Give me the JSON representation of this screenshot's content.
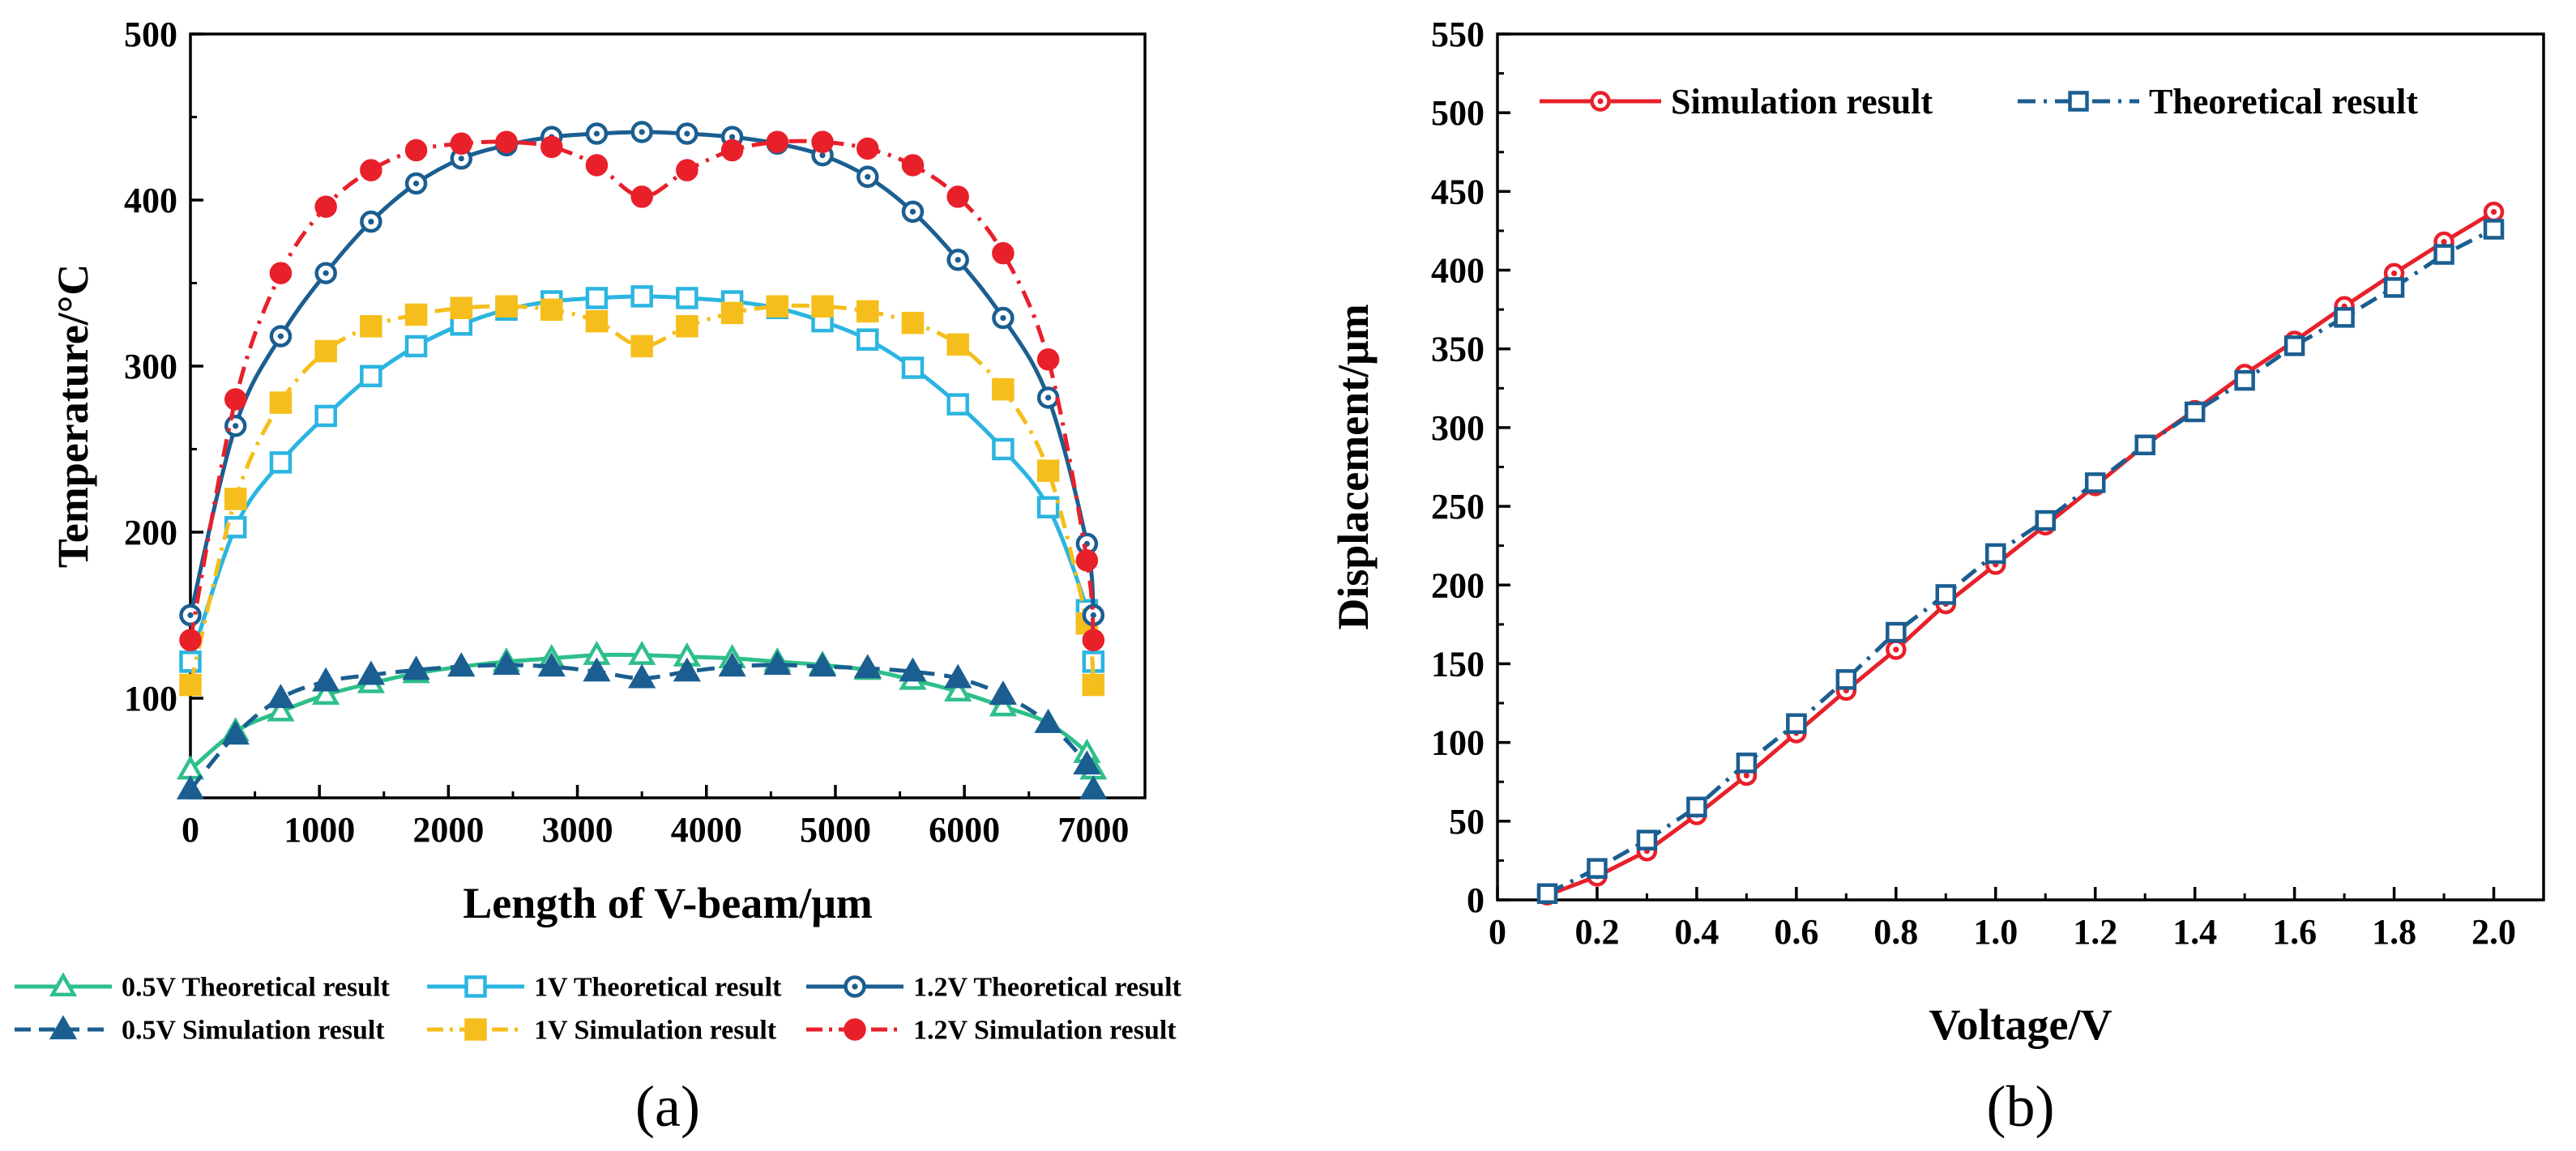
{
  "chart_data": [
    {
      "type": "line",
      "panel_label": "(a)",
      "xlabel": "Length of V-beam/μm",
      "ylabel": "Temperature/°C",
      "xlim": [
        0,
        7400
      ],
      "ylim": [
        40,
        500
      ],
      "xticks": [
        0,
        1000,
        2000,
        3000,
        4000,
        5000,
        6000,
        7000
      ],
      "yticks": [
        100,
        200,
        300,
        400,
        500
      ],
      "xtick_labels": [
        "0",
        "1000",
        "2000",
        "3000",
        "4000",
        "5000",
        "6000",
        "7000"
      ],
      "ytick_labels": [
        "100",
        "200",
        "300",
        "400",
        "500"
      ],
      "grid": false,
      "legend_position": "bottom",
      "series": [
        {
          "name": "0.5V Theoretical result",
          "color": "#2ebf8a",
          "marker": "triangle-open",
          "line": "solid",
          "x": [
            0,
            350,
            700,
            1050,
            1400,
            1750,
            2100,
            2450,
            2800,
            3150,
            3500,
            3850,
            4200,
            4550,
            4900,
            5250,
            5600,
            5950,
            6300,
            6650,
            6950,
            7000
          ],
          "y": [
            57,
            80,
            92,
            102,
            109,
            115,
            119,
            122,
            124,
            126,
            126,
            125,
            124,
            122,
            120,
            117,
            111,
            104,
            95,
            85,
            67,
            57
          ]
        },
        {
          "name": "0.5V Simulation result",
          "color": "#1b5e91",
          "marker": "triangle-filled",
          "line": "dash",
          "x": [
            0,
            350,
            700,
            1050,
            1400,
            1750,
            2100,
            2450,
            2800,
            3150,
            3500,
            3850,
            4200,
            4550,
            4900,
            5250,
            5600,
            5950,
            6300,
            6650,
            6950,
            7000
          ],
          "y": [
            45,
            78,
            100,
            110,
            114,
            117,
            119,
            120,
            119,
            116,
            112,
            116,
            119,
            120,
            119,
            118,
            116,
            112,
            102,
            85,
            60,
            45
          ]
        },
        {
          "name": "1V Theoretical result",
          "color": "#2bb5e0",
          "marker": "square-open",
          "line": "solid",
          "x": [
            0,
            350,
            700,
            1050,
            1400,
            1750,
            2100,
            2450,
            2800,
            3150,
            3500,
            3850,
            4200,
            4550,
            4900,
            5250,
            5600,
            5950,
            6300,
            6650,
            6950,
            7000
          ],
          "y": [
            122,
            203,
            242,
            270,
            294,
            312,
            325,
            334,
            339,
            341,
            342,
            341,
            339,
            335,
            327,
            316,
            299,
            277,
            250,
            215,
            153,
            122
          ]
        },
        {
          "name": "1V Simulation result",
          "color": "#f5be1c",
          "marker": "square-filled",
          "line": "dashdot",
          "x": [
            0,
            350,
            700,
            1050,
            1400,
            1750,
            2100,
            2450,
            2800,
            3150,
            3500,
            3850,
            4200,
            4550,
            4900,
            5250,
            5600,
            5950,
            6300,
            6650,
            6950,
            7000
          ],
          "y": [
            108,
            220,
            278,
            309,
            324,
            331,
            335,
            336,
            334,
            327,
            312,
            324,
            332,
            336,
            336,
            333,
            326,
            313,
            286,
            237,
            145,
            108
          ]
        },
        {
          "name": "1.2V Theoretical result",
          "color": "#1b5e91",
          "marker": "circle-open",
          "line": "solid",
          "x": [
            0,
            350,
            700,
            1050,
            1400,
            1750,
            2100,
            2450,
            2800,
            3150,
            3500,
            3850,
            4200,
            4550,
            4900,
            5250,
            5600,
            5950,
            6300,
            6650,
            6950,
            7000
          ],
          "y": [
            150,
            264,
            318,
            356,
            387,
            410,
            425,
            433,
            438,
            440,
            441,
            440,
            438,
            434,
            427,
            414,
            393,
            364,
            329,
            281,
            193,
            150
          ]
        },
        {
          "name": "1.2V Simulation result",
          "color": "#e8202a",
          "marker": "circle-filled",
          "line": "dashdot",
          "x": [
            0,
            350,
            700,
            1050,
            1400,
            1750,
            2100,
            2450,
            2800,
            3150,
            3500,
            3850,
            4200,
            4550,
            4900,
            5250,
            5600,
            5950,
            6300,
            6650,
            6950,
            7000
          ],
          "y": [
            135,
            280,
            356,
            396,
            418,
            430,
            434,
            435,
            432,
            421,
            402,
            418,
            430,
            435,
            435,
            431,
            421,
            402,
            368,
            304,
            183,
            135
          ]
        }
      ]
    },
    {
      "type": "line",
      "panel_label": "(b)",
      "xlabel": "Voltage/V",
      "ylabel": "Displacement/μm",
      "xlim": [
        0,
        2.1
      ],
      "ylim": [
        0,
        550
      ],
      "xticks": [
        0,
        0.2,
        0.4,
        0.6,
        0.8,
        1.0,
        1.2,
        1.4,
        1.6,
        1.8,
        2.0
      ],
      "yticks": [
        0,
        50,
        100,
        150,
        200,
        250,
        300,
        350,
        400,
        450,
        500,
        550
      ],
      "xtick_labels": [
        "0",
        "0.2",
        "0.4",
        "0.6",
        "0.8",
        "1.0",
        "1.2",
        "1.4",
        "1.6",
        "1.8",
        "2.0"
      ],
      "ytick_labels": [
        "0",
        "50",
        "100",
        "150",
        "200",
        "250",
        "300",
        "350",
        "400",
        "450",
        "500",
        "550"
      ],
      "grid": false,
      "legend_position": "top",
      "series": [
        {
          "name": "Simulation result",
          "color": "#e8202a",
          "marker": "circle-open",
          "line": "solid",
          "x": [
            0.1,
            0.2,
            0.3,
            0.4,
            0.5,
            0.6,
            0.7,
            0.8,
            0.9,
            1.0,
            1.1,
            1.2,
            1.3,
            1.4,
            1.5,
            1.6,
            1.7,
            1.8,
            1.9,
            2.0
          ],
          "y": [
            3,
            15,
            31,
            54,
            79,
            106,
            133,
            159,
            188,
            213,
            238,
            263,
            289,
            311,
            334,
            355,
            377,
            398,
            418,
            437
          ]
        },
        {
          "name": "Theoretical result",
          "color": "#1b5e91",
          "marker": "square-open",
          "line": "dashdot",
          "x": [
            0.1,
            0.2,
            0.3,
            0.4,
            0.5,
            0.6,
            0.7,
            0.8,
            0.9,
            1.0,
            1.1,
            1.2,
            1.3,
            1.4,
            1.5,
            1.6,
            1.7,
            1.8,
            1.9,
            2.0
          ],
          "y": [
            4,
            20,
            38,
            59,
            87,
            112,
            140,
            170,
            194,
            220,
            241,
            265,
            289,
            310,
            330,
            352,
            370,
            389,
            410,
            426
          ]
        }
      ]
    }
  ]
}
